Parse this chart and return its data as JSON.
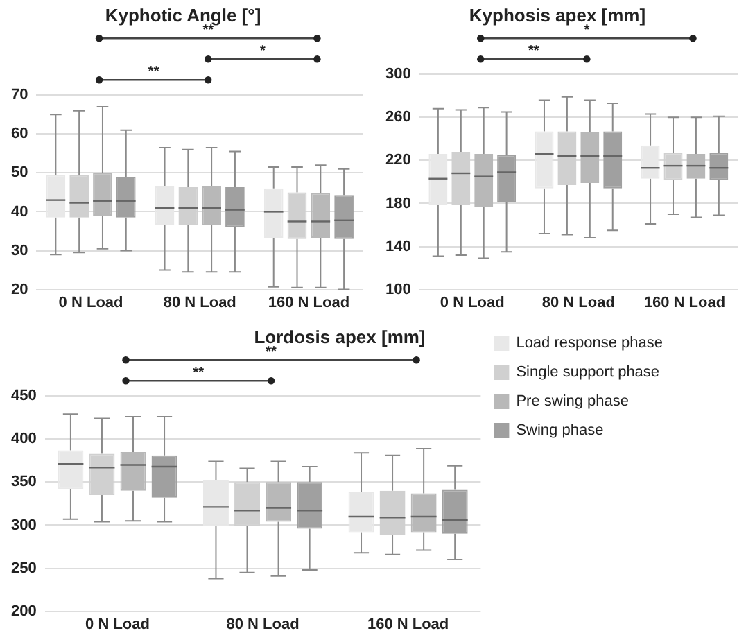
{
  "chart_data": [
    {
      "type": "box",
      "title": "Kyphotic Angle [°]",
      "categories": [
        "0 N Load",
        "80 N Load",
        "160 N Load"
      ],
      "ylim": [
        20,
        70
      ],
      "yticks": [
        20,
        30,
        40,
        50,
        60,
        70
      ],
      "grid": "y",
      "annotations": [
        "**",
        "*",
        "**"
      ],
      "series": [
        {
          "color": "#e8e8e8",
          "boxes": [
            {
              "low": 29,
              "q1": 38.5,
              "median": 43,
              "q3": 49.5,
              "high": 65
            },
            {
              "low": 25,
              "q1": 36.7,
              "median": 41,
              "q3": 46.5,
              "high": 56.5
            },
            {
              "low": 20.7,
              "q1": 33.3,
              "median": 40,
              "q3": 46,
              "high": 51.5
            }
          ]
        },
        {
          "color": "#d0d0d0",
          "boxes": [
            {
              "low": 29.5,
              "q1": 38.5,
              "median": 42.3,
              "q3": 49.5,
              "high": 66
            },
            {
              "low": 24.5,
              "q1": 36.5,
              "median": 41,
              "q3": 46.3,
              "high": 56
            },
            {
              "low": 20.5,
              "q1": 33,
              "median": 37.5,
              "q3": 45,
              "high": 51.5
            }
          ]
        },
        {
          "color": "#b8b8b8",
          "boxes": [
            {
              "low": 30.5,
              "q1": 39,
              "median": 42.8,
              "q3": 50,
              "high": 67
            },
            {
              "low": 24.5,
              "q1": 36.5,
              "median": 41,
              "q3": 46.5,
              "high": 56.5
            },
            {
              "low": 20.5,
              "q1": 33.3,
              "median": 37.5,
              "q3": 44.8,
              "high": 52
            }
          ]
        },
        {
          "color": "#a0a0a0",
          "boxes": [
            {
              "low": 30,
              "q1": 38.5,
              "median": 42.8,
              "q3": 49,
              "high": 61
            },
            {
              "low": 24.5,
              "q1": 36,
              "median": 40.5,
              "q3": 46.3,
              "high": 55.5
            },
            {
              "low": 20,
              "q1": 33,
              "median": 37.8,
              "q3": 44.3,
              "high": 51
            }
          ]
        }
      ]
    },
    {
      "type": "box",
      "title": "Kyphosis apex [mm]",
      "categories": [
        "0 N Load",
        "80 N Load",
        "160 N Load"
      ],
      "ylim": [
        100,
        300
      ],
      "yticks": [
        100,
        140,
        180,
        220,
        260,
        300
      ],
      "grid": "y",
      "annotations": [
        "*",
        "**"
      ],
      "series": [
        {
          "color": "#e8e8e8",
          "boxes": [
            {
              "low": 131,
              "q1": 179,
              "median": 203,
              "q3": 226,
              "high": 268
            },
            {
              "low": 152,
              "q1": 194,
              "median": 226,
              "q3": 247,
              "high": 276
            },
            {
              "low": 161,
              "q1": 203,
              "median": 213,
              "q3": 234,
              "high": 263
            }
          ]
        },
        {
          "color": "#d0d0d0",
          "boxes": [
            {
              "low": 132,
              "q1": 179,
              "median": 208,
              "q3": 228,
              "high": 267
            },
            {
              "low": 151,
              "q1": 197,
              "median": 224,
              "q3": 247,
              "high": 279
            },
            {
              "low": 170,
              "q1": 202,
              "median": 215,
              "q3": 227,
              "high": 260
            }
          ]
        },
        {
          "color": "#b8b8b8",
          "boxes": [
            {
              "low": 129,
              "q1": 177,
              "median": 205,
              "q3": 226,
              "high": 269
            },
            {
              "low": 148,
              "q1": 199,
              "median": 224,
              "q3": 246,
              "high": 276
            },
            {
              "low": 167,
              "q1": 203,
              "median": 215,
              "q3": 226,
              "high": 260
            }
          ]
        },
        {
          "color": "#a0a0a0",
          "boxes": [
            {
              "low": 135,
              "q1": 181,
              "median": 209,
              "q3": 225,
              "high": 265
            },
            {
              "low": 155,
              "q1": 194,
              "median": 224,
              "q3": 247,
              "high": 273
            },
            {
              "low": 169,
              "q1": 202,
              "median": 213,
              "q3": 227,
              "high": 261
            }
          ]
        }
      ]
    },
    {
      "type": "box",
      "title": "Lordosis apex [mm]",
      "categories": [
        "0 N Load",
        "80 N Load",
        "160 N Load"
      ],
      "ylim": [
        200,
        450
      ],
      "yticks": [
        200,
        250,
        300,
        350,
        400,
        450
      ],
      "grid": "y",
      "legend": "right",
      "annotations": [
        "**",
        "**"
      ],
      "series": [
        {
          "name": "Load response phase",
          "color": "#e8e8e8",
          "boxes": [
            {
              "low": 307,
              "q1": 342,
              "median": 371,
              "q3": 387,
              "high": 429
            },
            {
              "low": 238,
              "q1": 299,
              "median": 321,
              "q3": 352,
              "high": 374
            },
            {
              "low": 268,
              "q1": 291,
              "median": 310,
              "q3": 339,
              "high": 384
            }
          ]
        },
        {
          "name": "Single support phase",
          "color": "#d0d0d0",
          "boxes": [
            {
              "low": 304,
              "q1": 335,
              "median": 367,
              "q3": 383,
              "high": 424
            },
            {
              "low": 245,
              "q1": 299,
              "median": 317,
              "q3": 350,
              "high": 366
            },
            {
              "low": 266,
              "q1": 289,
              "median": 309,
              "q3": 340,
              "high": 381
            }
          ]
        },
        {
          "name": "Pre swing phase",
          "color": "#b8b8b8",
          "boxes": [
            {
              "low": 305,
              "q1": 340,
              "median": 370,
              "q3": 385,
              "high": 426
            },
            {
              "low": 241,
              "q1": 304,
              "median": 320,
              "q3": 350,
              "high": 374
            },
            {
              "low": 271,
              "q1": 291,
              "median": 310,
              "q3": 337,
              "high": 389
            }
          ]
        },
        {
          "name": "Swing phase",
          "color": "#a0a0a0",
          "boxes": [
            {
              "low": 304,
              "q1": 332,
              "median": 368,
              "q3": 381,
              "high": 426
            },
            {
              "low": 248,
              "q1": 296,
              "median": 317,
              "q3": 350,
              "high": 368
            },
            {
              "low": 260,
              "q1": 290,
              "median": 306,
              "q3": 341,
              "high": 369
            }
          ]
        }
      ]
    }
  ]
}
